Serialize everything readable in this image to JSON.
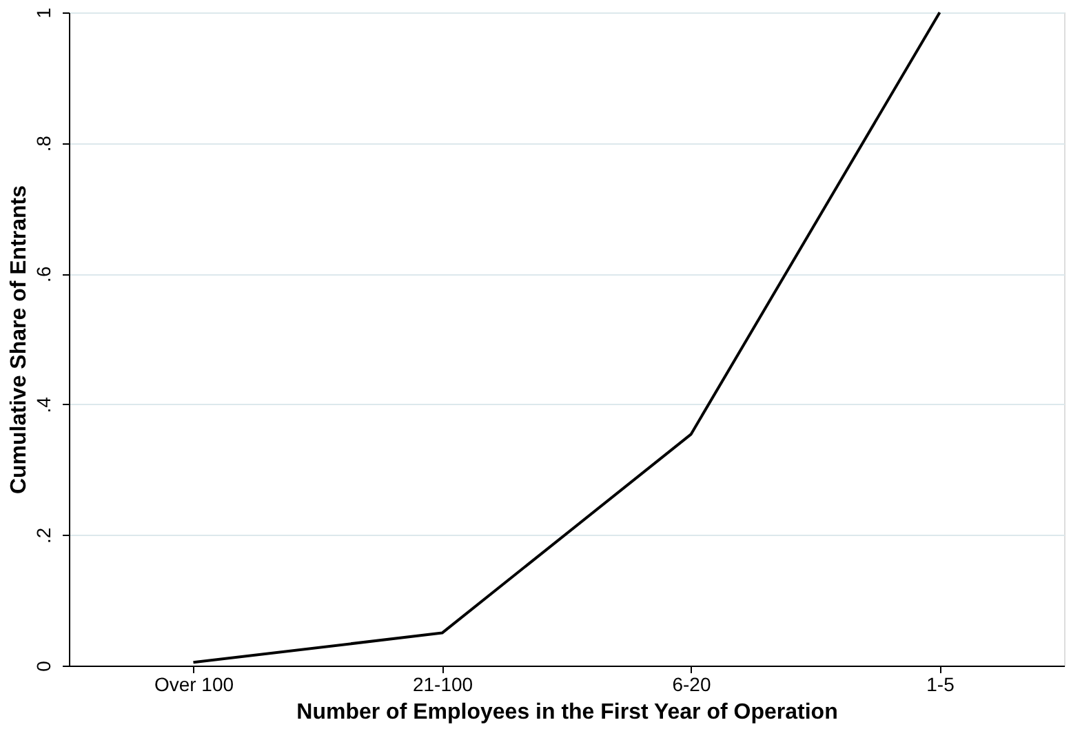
{
  "chart_data": {
    "type": "line",
    "xlabel": "Number of Employees in the First Year of Operation",
    "ylabel": "Cumulative Share of Entrants",
    "categories": [
      "Over 100",
      "21-100",
      "6-20",
      "1-5"
    ],
    "series": [
      {
        "color": "#000000",
        "values": [
          0.005,
          0.05,
          0.354,
          1.0
        ]
      }
    ],
    "ylim": [
      0,
      1
    ],
    "yticks": [
      {
        "value": 0,
        "label": "0"
      },
      {
        "value": 0.2,
        "label": ".2"
      },
      {
        "value": 0.4,
        "label": ".4"
      },
      {
        "value": 0.6,
        "label": ".6"
      },
      {
        "value": 0.8,
        "label": ".8"
      },
      {
        "value": 1,
        "label": "1"
      }
    ],
    "grid": "y",
    "line_style": "solid",
    "marker": "none"
  }
}
